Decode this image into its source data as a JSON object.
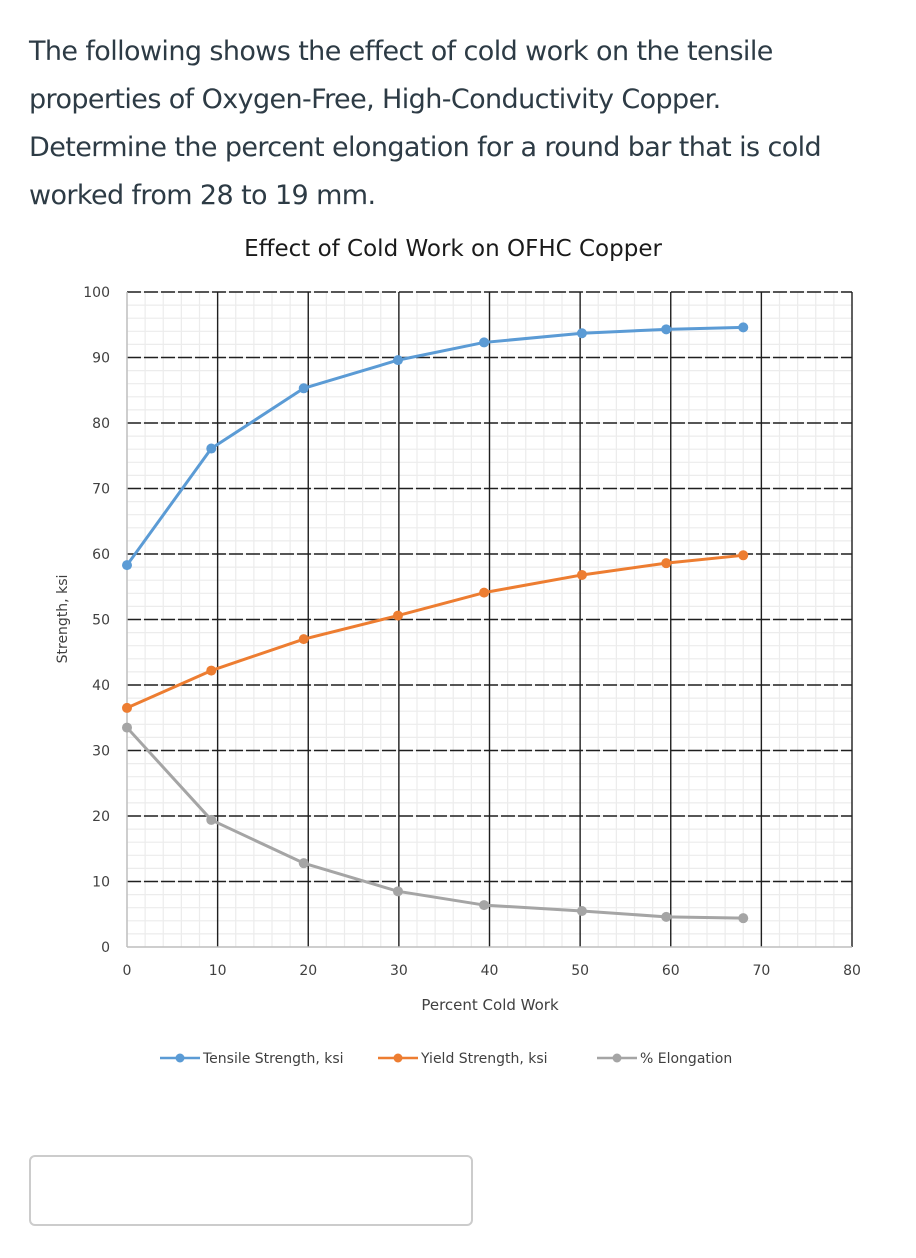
{
  "question": {
    "lines": [
      "The following shows the effect of cold work on the tensile",
      "properties of Oxygen-Free, High-Conductivity Copper.",
      "Determine the percent elongation for a round bar that is cold",
      "worked from 28 to 19 mm."
    ]
  },
  "answer": {
    "value": "",
    "placeholder": ""
  },
  "chart_data": {
    "type": "line",
    "title": "Effect of Cold Work on OFHC Copper",
    "xlabel": "Percent Cold Work",
    "ylabel": "Strength, ksi",
    "xlim": [
      0,
      80
    ],
    "ylim": [
      0,
      100
    ],
    "x_ticks": [
      0,
      10,
      20,
      30,
      40,
      50,
      60,
      70,
      80
    ],
    "y_ticks": [
      0,
      10,
      20,
      30,
      40,
      50,
      60,
      70,
      80,
      90,
      100
    ],
    "grid": {
      "major": true,
      "minor": true,
      "minor_step": 2
    },
    "legend_position": "bottom",
    "x": [
      0,
      9.3,
      19.5,
      29.9,
      39.4,
      50.2,
      59.5,
      68.0
    ],
    "series": [
      {
        "name": "Tensile Strength, ksi",
        "color": "#5b9bd5",
        "values": [
          58.3,
          76.1,
          85.3,
          89.6,
          92.3,
          93.7,
          94.3,
          94.6
        ]
      },
      {
        "name": "Yield Strength, ksi",
        "color": "#ed7d31",
        "values": [
          36.5,
          42.2,
          47.0,
          50.6,
          54.1,
          56.8,
          58.6,
          59.8
        ]
      },
      {
        "name": "% Elongation",
        "color": "#a5a5a5",
        "values": [
          33.5,
          19.4,
          12.8,
          8.5,
          6.4,
          5.5,
          4.6,
          4.4
        ]
      }
    ]
  }
}
